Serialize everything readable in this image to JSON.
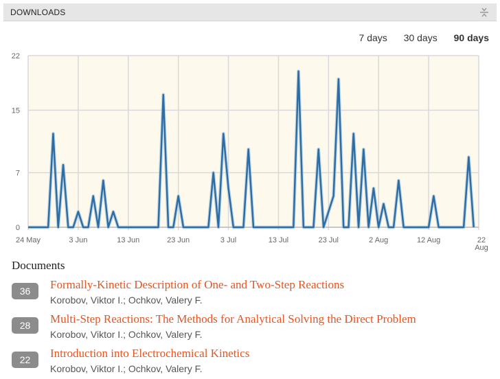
{
  "panel": {
    "title": "DOWNLOADS"
  },
  "range_tabs": [
    {
      "label": "7 days",
      "active": false
    },
    {
      "label": "30 days",
      "active": false
    },
    {
      "label": "90 days",
      "active": true
    }
  ],
  "chart_data": {
    "type": "line",
    "x_unit": "day",
    "x_start": "24 May",
    "x_tick_labels": [
      "24 May",
      "3 Jun",
      "13 Jun",
      "23 Jun",
      "3 Jul",
      "13 Jul",
      "23 Jul",
      "2 Aug",
      "12 Aug",
      "22 Aug"
    ],
    "y_tick_labels": [
      "0",
      "7",
      "15",
      "22"
    ],
    "ylim": [
      0,
      22
    ],
    "grid": true,
    "background_color": "#fdf9ec",
    "line_color": "#2e6da4",
    "points": [
      [
        0,
        0
      ],
      [
        4,
        0
      ],
      [
        5,
        12
      ],
      [
        6,
        0
      ],
      [
        7,
        8
      ],
      [
        8,
        0
      ],
      [
        9,
        0
      ],
      [
        10,
        2
      ],
      [
        11,
        0
      ],
      [
        12,
        0
      ],
      [
        13,
        4
      ],
      [
        14,
        0
      ],
      [
        15,
        6
      ],
      [
        16,
        0
      ],
      [
        17,
        2
      ],
      [
        18,
        0
      ],
      [
        26,
        0
      ],
      [
        27,
        17
      ],
      [
        28,
        0
      ],
      [
        29,
        0
      ],
      [
        30,
        4
      ],
      [
        31,
        0
      ],
      [
        36,
        0
      ],
      [
        37,
        7
      ],
      [
        38,
        0
      ],
      [
        39,
        12
      ],
      [
        40,
        5
      ],
      [
        41,
        0
      ],
      [
        43,
        0
      ],
      [
        44,
        10
      ],
      [
        45,
        0
      ],
      [
        53,
        0
      ],
      [
        54,
        20
      ],
      [
        55,
        0
      ],
      [
        57,
        0
      ],
      [
        58,
        10
      ],
      [
        59,
        0
      ],
      [
        61,
        4
      ],
      [
        62,
        19
      ],
      [
        63,
        0
      ],
      [
        64,
        0
      ],
      [
        65,
        12
      ],
      [
        66,
        0
      ],
      [
        67,
        10
      ],
      [
        68,
        0
      ],
      [
        69,
        5
      ],
      [
        70,
        0
      ],
      [
        71,
        3
      ],
      [
        72,
        0
      ],
      [
        73,
        0
      ],
      [
        74,
        6
      ],
      [
        75,
        0
      ],
      [
        80,
        0
      ],
      [
        81,
        4
      ],
      [
        82,
        0
      ],
      [
        87,
        0
      ],
      [
        88,
        9
      ],
      [
        89,
        0
      ]
    ]
  },
  "documents": {
    "heading": "Documents",
    "items": [
      {
        "count": "36",
        "title": "Formally-Kinetic Description of One- and Two-Step Reactions",
        "authors": "Korobov, Viktor I.; Ochkov, Valery F."
      },
      {
        "count": "28",
        "title": "Multi-Step Reactions: The Methods for Analytical Solving the Direct Problem",
        "authors": "Korobov, Viktor I.; Ochkov, Valery F."
      },
      {
        "count": "22",
        "title": "Introduction into Electrochemical Kinetics",
        "authors": "Korobov, Viktor I.; Ochkov, Valery F."
      }
    ]
  },
  "icons": {
    "collapse": "collapse-icon"
  }
}
